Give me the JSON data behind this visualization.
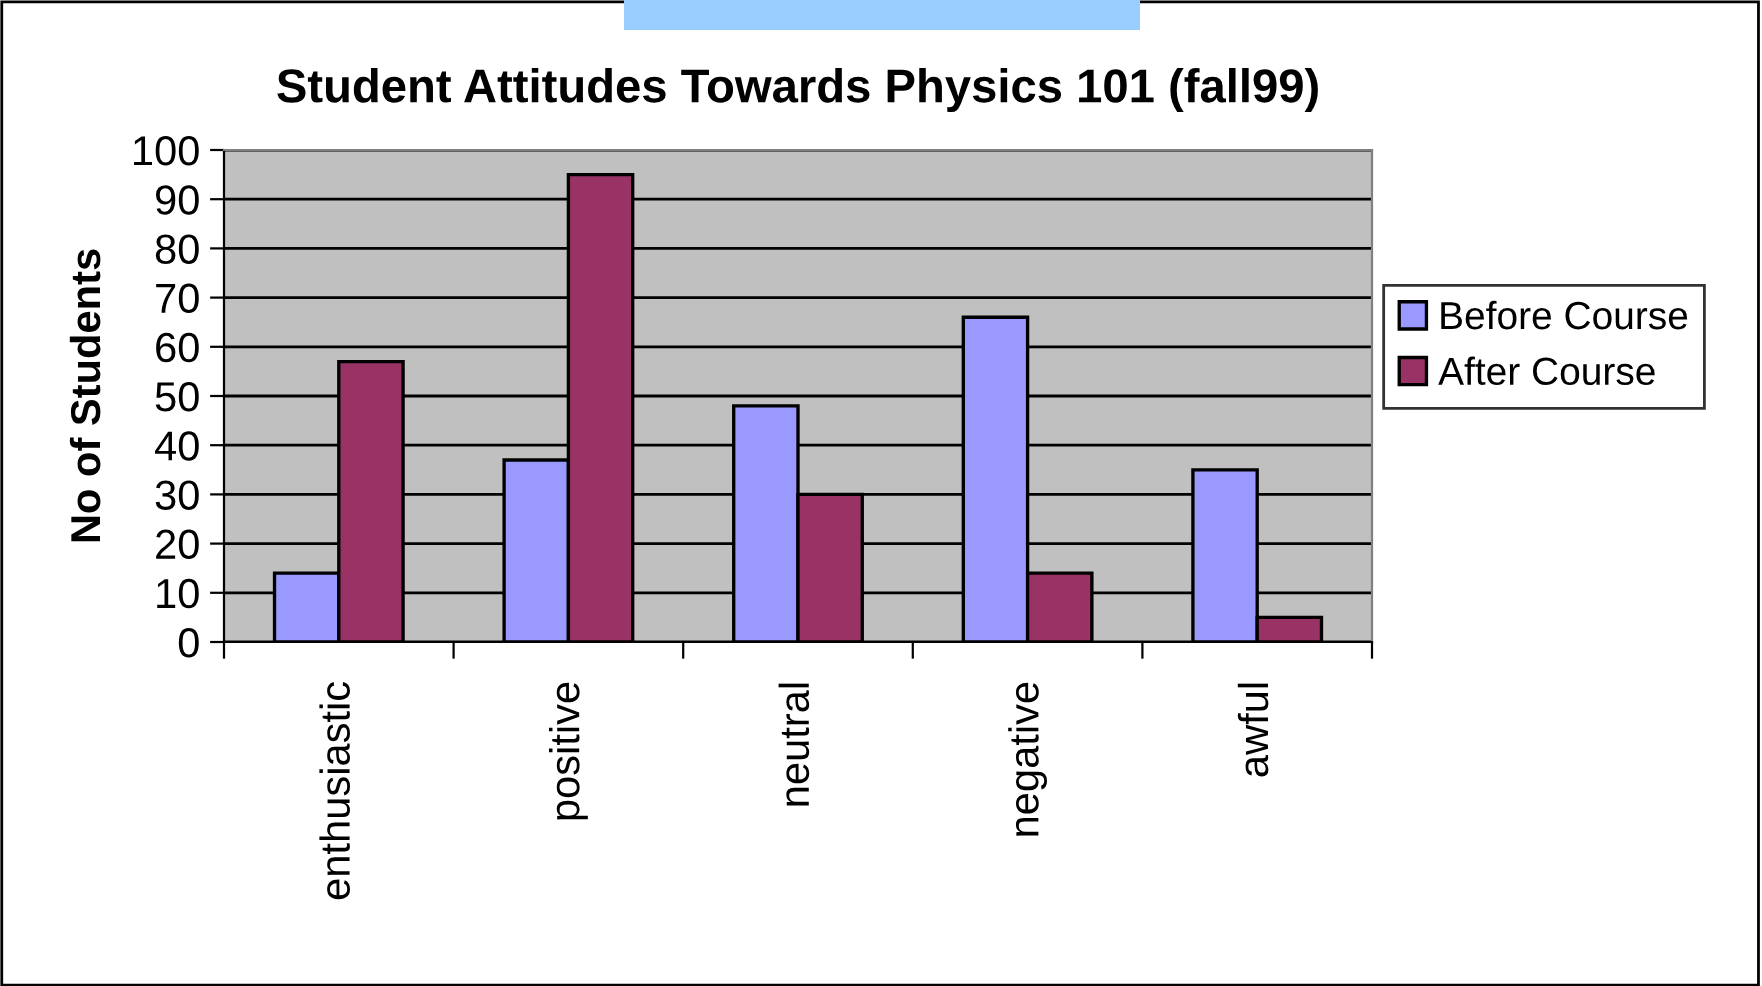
{
  "chart_data": {
    "type": "bar",
    "title": "Student Attitudes Towards Physics 101 (fall99)",
    "ylabel": "No of Students",
    "categories": [
      "enthusiastic",
      "positive",
      "neutral",
      "negative",
      "awful"
    ],
    "series": [
      {
        "name": "Before Course",
        "color": "#9999ff",
        "values": [
          14,
          37,
          48,
          66,
          35
        ]
      },
      {
        "name": "After Course",
        "color": "#993366",
        "values": [
          57,
          95,
          30,
          14,
          5
        ]
      }
    ],
    "ylim": [
      0,
      100
    ],
    "yticks": [
      0,
      10,
      20,
      30,
      40,
      50,
      60,
      70,
      80,
      90,
      100
    ],
    "grid": "y",
    "legend": "right"
  }
}
